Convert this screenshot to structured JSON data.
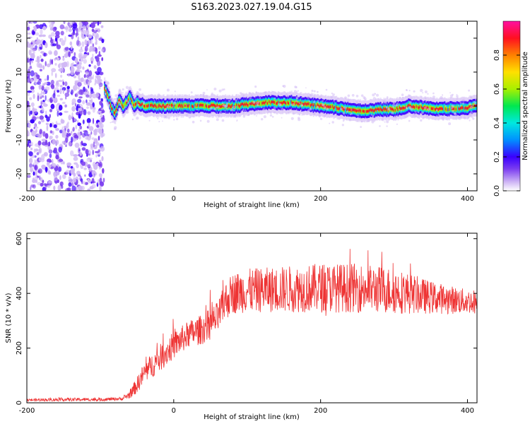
{
  "title": "S163.2023.027.19.04.G15",
  "chart_data": [
    {
      "type": "heatmap",
      "xlabel": "Height of straight line (km)",
      "ylabel": "Frequency (Hz)",
      "xlim": [
        -200,
        413
      ],
      "ylim": [
        -25,
        25
      ],
      "x_ticks": [
        -200,
        0,
        200,
        400
      ],
      "y_ticks": [
        -20,
        -10,
        0,
        10,
        20
      ],
      "colorbar": {
        "label": "Normalized spectral amplitude",
        "range": [
          0,
          1
        ],
        "ticks": [
          "0.0",
          "0.2",
          "0.4",
          "0.6",
          "0.8"
        ],
        "colors": [
          "#ffffff",
          "#d0b8f5",
          "#7a3cf0",
          "#3a00ff",
          "#0090ff",
          "#00e8e0",
          "#00e850",
          "#a8f000",
          "#ffe000",
          "#ff8000",
          "#ff1020",
          "#ff10a0"
        ]
      },
      "noise_region_x": [
        -200,
        -95
      ],
      "ridge": {
        "x": [
          -95,
          -90,
          -85,
          -80,
          -75,
          -70,
          -65,
          -60,
          -55,
          -50,
          -40,
          -20,
          0,
          40,
          80,
          120,
          160,
          200,
          240,
          260,
          280,
          300,
          320,
          360,
          400,
          413
        ],
        "freq": [
          5,
          3,
          -1,
          -2,
          2,
          0,
          1,
          3,
          0,
          1,
          0,
          0,
          0,
          0,
          0,
          1,
          1,
          0,
          -1,
          -1.5,
          -1,
          -1,
          0,
          -1,
          -0.5,
          0
        ]
      }
    },
    {
      "type": "line",
      "xlabel": "Height of straight line (km)",
      "ylabel": "SNR (10 * v/v)",
      "xlim": [
        -200,
        413
      ],
      "ylim": [
        0,
        620
      ],
      "x_ticks": [
        -200,
        0,
        200,
        400
      ],
      "y_ticks": [
        0,
        200,
        400,
        600
      ],
      "series_color": "#ee3333",
      "envelope": {
        "x": [
          -200,
          -150,
          -100,
          -70,
          -60,
          -50,
          -40,
          -20,
          0,
          20,
          40,
          60,
          70,
          80,
          100,
          150,
          200,
          250,
          300,
          350,
          400,
          413
        ],
        "mean": [
          10,
          12,
          12,
          15,
          30,
          65,
          110,
          160,
          210,
          250,
          270,
          310,
          370,
          400,
          410,
          415,
          420,
          420,
          410,
          385,
          370,
          370
        ],
        "spread": [
          5,
          6,
          6,
          6,
          15,
          30,
          40,
          50,
          50,
          50,
          55,
          60,
          70,
          75,
          80,
          85,
          90,
          90,
          85,
          60,
          45,
          45
        ]
      }
    }
  ]
}
